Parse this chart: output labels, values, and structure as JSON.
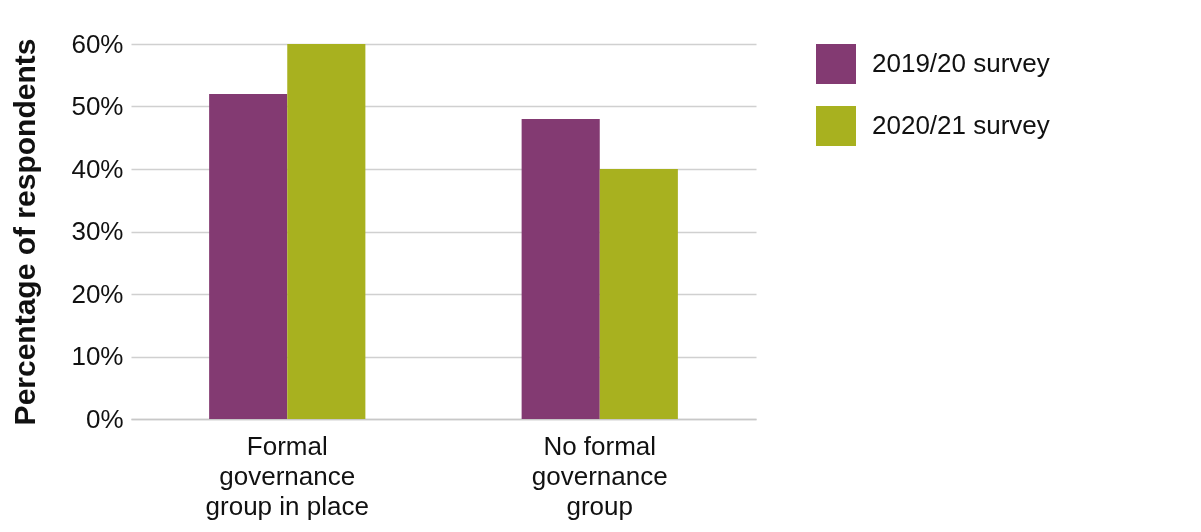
{
  "chart_data": {
    "type": "bar",
    "ylabel": "Percentage of respondents",
    "categories": [
      "Formal governance group in place",
      "No formal governance group"
    ],
    "series": [
      {
        "name": "2019/20 survey",
        "color": "#833a72",
        "values": [
          52,
          48
        ]
      },
      {
        "name": "2020/21 survey",
        "color": "#a8b11f",
        "values": [
          60,
          40
        ]
      }
    ],
    "ylim": [
      0,
      60
    ],
    "yticks": [
      {
        "value": 0,
        "label": "0%"
      },
      {
        "value": 10,
        "label": "10%"
      },
      {
        "value": 20,
        "label": "20%"
      },
      {
        "value": 30,
        "label": "30%"
      },
      {
        "value": 40,
        "label": "40%"
      },
      {
        "value": 50,
        "label": "50%"
      },
      {
        "value": 60,
        "label": "60%"
      }
    ],
    "grid": "y",
    "legend": "right"
  }
}
